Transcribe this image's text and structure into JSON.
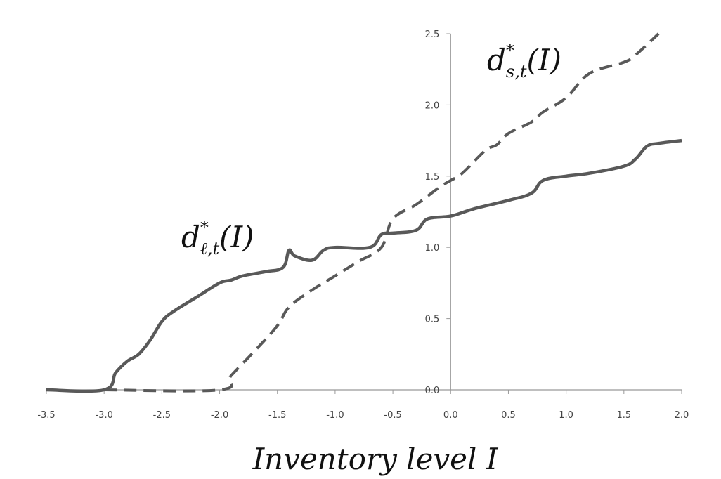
{
  "chart_data": {
    "type": "line",
    "xlabel": "Inventory level I",
    "ylabel": "",
    "xlim": [
      -3.5,
      2.0
    ],
    "ylim": [
      0.0,
      2.5
    ],
    "x_ticks": [
      "-3.5",
      "-3.0",
      "-2.5",
      "-2.0",
      "-1.5",
      "-1.0",
      "-0.5",
      "0.0",
      "0.5",
      "1.0",
      "1.5",
      "2.0"
    ],
    "y_ticks": [
      "0.0",
      "0.5",
      "1.0",
      "1.5",
      "2.0",
      "2.5"
    ],
    "grid": false,
    "series": [
      {
        "name": "d*_{ℓ,t}(I)",
        "label_base": "d",
        "label_sup": "*",
        "label_sub": "ℓ,t",
        "label_arg": "(I)",
        "style": "solid",
        "color": "#595959",
        "points": [
          [
            -3.5,
            0.0
          ],
          [
            -3.0,
            0.0
          ],
          [
            -2.9,
            0.12
          ],
          [
            -2.8,
            0.2
          ],
          [
            -2.7,
            0.25
          ],
          [
            -2.6,
            0.35
          ],
          [
            -2.5,
            0.48
          ],
          [
            -2.4,
            0.55
          ],
          [
            -2.2,
            0.65
          ],
          [
            -2.0,
            0.75
          ],
          [
            -1.9,
            0.77
          ],
          [
            -1.8,
            0.8
          ],
          [
            -1.6,
            0.83
          ],
          [
            -1.45,
            0.86
          ],
          [
            -1.4,
            0.98
          ],
          [
            -1.35,
            0.94
          ],
          [
            -1.2,
            0.91
          ],
          [
            -1.1,
            0.98
          ],
          [
            -1.0,
            1.0
          ],
          [
            -0.7,
            1.0
          ],
          [
            -0.6,
            1.09
          ],
          [
            -0.5,
            1.1
          ],
          [
            -0.3,
            1.12
          ],
          [
            -0.2,
            1.2
          ],
          [
            0.0,
            1.22
          ],
          [
            0.2,
            1.27
          ],
          [
            0.5,
            1.33
          ],
          [
            0.7,
            1.38
          ],
          [
            0.8,
            1.47
          ],
          [
            1.0,
            1.5
          ],
          [
            1.2,
            1.52
          ],
          [
            1.5,
            1.57
          ],
          [
            1.6,
            1.62
          ],
          [
            1.7,
            1.71
          ],
          [
            1.8,
            1.73
          ],
          [
            2.0,
            1.75
          ]
        ]
      },
      {
        "name": "d*_{s,t}(I)",
        "label_base": "d",
        "label_sup": "*",
        "label_sub": "s,t",
        "label_arg": "(I)",
        "style": "dashed",
        "color": "#595959",
        "points": [
          [
            -3.0,
            0.0
          ],
          [
            -2.0,
            0.0
          ],
          [
            -1.9,
            0.1
          ],
          [
            -1.7,
            0.27
          ],
          [
            -1.5,
            0.45
          ],
          [
            -1.4,
            0.58
          ],
          [
            -1.2,
            0.7
          ],
          [
            -1.0,
            0.8
          ],
          [
            -0.8,
            0.9
          ],
          [
            -0.6,
            1.0
          ],
          [
            -0.5,
            1.2
          ],
          [
            -0.3,
            1.3
          ],
          [
            -0.1,
            1.42
          ],
          [
            0.0,
            1.47
          ],
          [
            0.1,
            1.52
          ],
          [
            0.3,
            1.68
          ],
          [
            0.4,
            1.72
          ],
          [
            0.5,
            1.8
          ],
          [
            0.7,
            1.88
          ],
          [
            0.8,
            1.95
          ],
          [
            1.0,
            2.05
          ],
          [
            1.2,
            2.22
          ],
          [
            1.5,
            2.3
          ],
          [
            1.6,
            2.35
          ],
          [
            1.8,
            2.5
          ]
        ]
      }
    ]
  }
}
